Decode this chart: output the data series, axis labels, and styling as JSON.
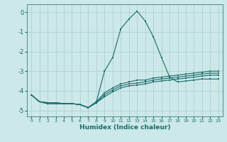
{
  "xlabel": "Humidex (Indice chaleur)",
  "bg_color": "#cce8e8",
  "grid_color": "#aacccc",
  "line_color": "#1a6b6b",
  "xlim": [
    -0.5,
    23.5
  ],
  "ylim": [
    -5.3,
    0.4
  ],
  "yticks": [
    0,
    -1,
    -2,
    -3,
    -4,
    -5
  ],
  "xticks": [
    0,
    1,
    2,
    3,
    4,
    5,
    6,
    7,
    8,
    9,
    10,
    11,
    12,
    13,
    14,
    15,
    16,
    17,
    18,
    19,
    20,
    21,
    22,
    23
  ],
  "x": [
    0,
    1,
    2,
    3,
    4,
    5,
    6,
    7,
    8,
    9,
    10,
    11,
    12,
    13,
    14,
    15,
    16,
    17,
    18,
    19,
    20,
    21,
    22,
    23
  ],
  "series": [
    [
      -4.2,
      -4.55,
      -4.6,
      -4.6,
      -4.65,
      -4.65,
      -4.7,
      -4.85,
      -4.55,
      -3.0,
      -2.3,
      -0.85,
      -0.35,
      0.05,
      -0.45,
      -1.25,
      -2.3,
      -3.3,
      -3.55,
      -3.5,
      -3.45,
      -3.4,
      -3.4,
      -3.4
    ],
    [
      -4.2,
      -4.55,
      -4.6,
      -4.6,
      -4.65,
      -4.65,
      -4.7,
      -4.85,
      -4.55,
      -4.1,
      -3.85,
      -3.65,
      -3.55,
      -3.45,
      -3.45,
      -3.35,
      -3.3,
      -3.25,
      -3.2,
      -3.15,
      -3.1,
      -3.05,
      -3.0,
      -3.0
    ],
    [
      -4.2,
      -4.55,
      -4.65,
      -4.65,
      -4.65,
      -4.65,
      -4.7,
      -4.85,
      -4.6,
      -4.2,
      -3.95,
      -3.75,
      -3.65,
      -3.6,
      -3.55,
      -3.45,
      -3.4,
      -3.35,
      -3.3,
      -3.25,
      -3.2,
      -3.15,
      -3.1,
      -3.1
    ],
    [
      -4.2,
      -4.55,
      -4.65,
      -4.65,
      -4.65,
      -4.65,
      -4.7,
      -4.85,
      -4.6,
      -4.3,
      -4.05,
      -3.85,
      -3.75,
      -3.7,
      -3.65,
      -3.55,
      -3.5,
      -3.45,
      -3.4,
      -3.35,
      -3.3,
      -3.25,
      -3.2,
      -3.2
    ]
  ]
}
